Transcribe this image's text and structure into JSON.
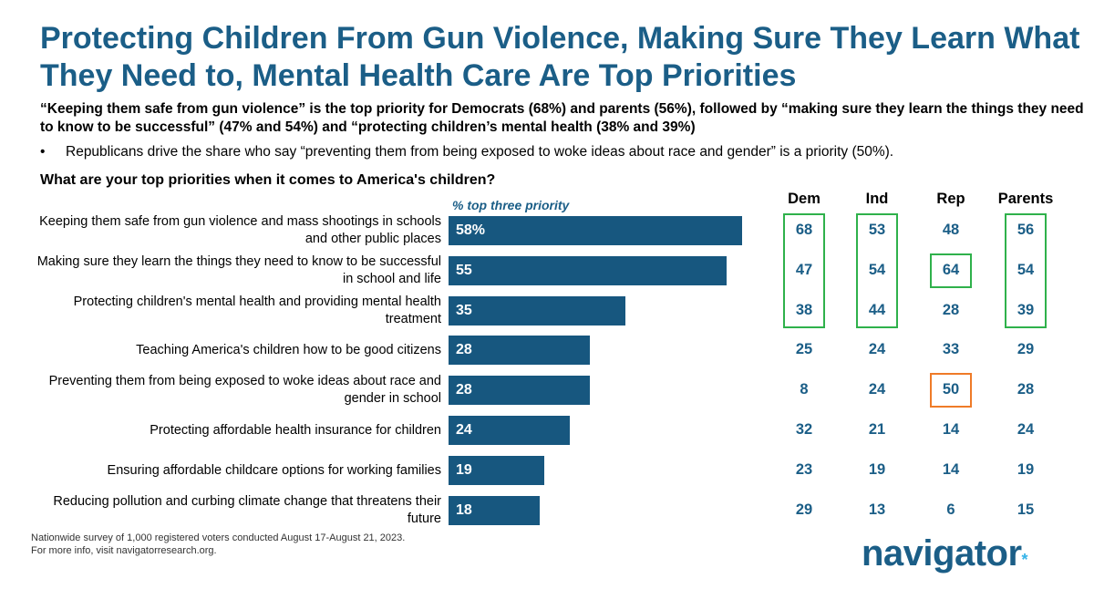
{
  "title": "Protecting Children From Gun Violence, Making Sure They Learn What They Need to, Mental Health Care Are Top Priorities",
  "subtitle": "“Keeping them safe from gun violence” is the top priority for Democrats (68%) and parents (56%), followed by “making sure they learn the things they need to know to be successful” (47% and 54%) and “protecting children’s mental health (38% and 39%)",
  "bullet_mark": "•",
  "bullet": "Republicans drive the share who say “preventing them from being exposed to woke ideas about race and gender” is a priority (50%).",
  "question": "What are your top priorities when it comes to America's children?",
  "footnote": {
    "line1": "Nationwide survey of 1,000 registered voters conducted August 17-August 21, 2023.",
    "line2": "For more info, visit navigatorresearch.org."
  },
  "logo": {
    "text": "navigator",
    "mark": "*"
  },
  "colors": {
    "title": "#1b5e87",
    "bar": "#17577f",
    "highlight_green": "#2fb14b",
    "highlight_orange": "#ef7b28",
    "logo_dot": "#35b3e8"
  },
  "chart_data": {
    "type": "bar",
    "orientation": "horizontal",
    "value_header": "% top three priority",
    "categories": [
      "Keeping them safe from gun violence and mass shootings in schools and other public places",
      "Making sure they learn the things they need to know to be successful in school and life",
      "Protecting children's mental health and providing mental health treatment",
      "Teaching America's children how to be good citizens",
      "Preventing them from being exposed to woke ideas about race and gender in school",
      "Protecting affordable health insurance for children",
      "Ensuring affordable childcare options for working families",
      "Reducing pollution and curbing climate change that threatens their future"
    ],
    "values": [
      58,
      55,
      35,
      28,
      28,
      24,
      19,
      18
    ],
    "value_labels": [
      "58%",
      "55",
      "35",
      "28",
      "28",
      "24",
      "19",
      "18"
    ],
    "xlim": [
      0,
      100
    ],
    "table": {
      "columns": [
        "Dem",
        "Ind",
        "Rep",
        "Parents"
      ],
      "rows": [
        [
          68,
          53,
          48,
          56
        ],
        [
          47,
          54,
          64,
          54
        ],
        [
          38,
          44,
          28,
          39
        ],
        [
          25,
          24,
          33,
          29
        ],
        [
          8,
          24,
          50,
          28
        ],
        [
          32,
          21,
          14,
          24
        ],
        [
          23,
          19,
          14,
          19
        ],
        [
          29,
          13,
          6,
          15
        ]
      ],
      "highlights": [
        {
          "color": "green",
          "column": "Dem",
          "rows": [
            0,
            2
          ]
        },
        {
          "color": "green",
          "column": "Ind",
          "rows": [
            0,
            2
          ]
        },
        {
          "color": "green",
          "column": "Rep",
          "rows": [
            1,
            1
          ]
        },
        {
          "color": "green",
          "column": "Parents",
          "rows": [
            0,
            2
          ]
        },
        {
          "color": "orange",
          "column": "Rep",
          "rows": [
            4,
            4
          ]
        }
      ]
    }
  }
}
